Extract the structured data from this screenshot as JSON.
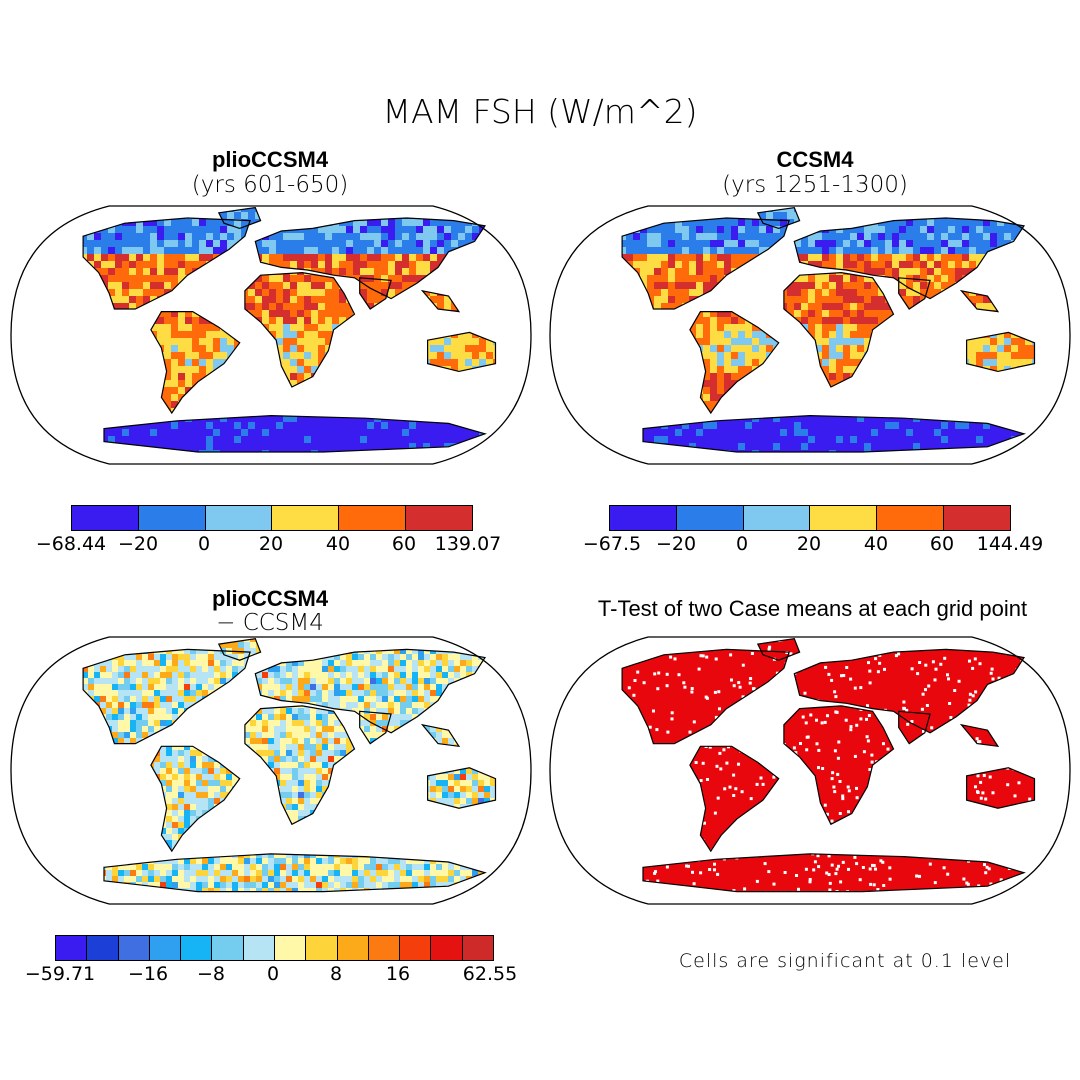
{
  "figure": {
    "title": "MAM FSH (W/m^2)"
  },
  "panels": [
    {
      "title": "plioCCSM4",
      "subtitle": "(yrs 601-650)",
      "colorbar": {
        "colors": [
          "#3b1cf0",
          "#2b7de9",
          "#7fc8f0",
          "#fddc44",
          "#ff6a0a",
          "#d42e2e"
        ],
        "labels": [
          "−68.44",
          "−20",
          "0",
          "20",
          "40",
          "60",
          "139.07"
        ]
      }
    },
    {
      "title": "CCSM4",
      "subtitle": "(yrs 1251-1300)",
      "colorbar": {
        "colors": [
          "#3b1cf0",
          "#2b7de9",
          "#7fc8f0",
          "#fddc44",
          "#ff6a0a",
          "#d42e2e"
        ],
        "labels": [
          "−67.5",
          "−20",
          "0",
          "20",
          "40",
          "60",
          "144.49"
        ]
      }
    },
    {
      "title": "plioCCSM4",
      "subtitle": "− CCSM4",
      "colorbar": {
        "colors": [
          "#3b1cf0",
          "#1c3fd8",
          "#3f6fe0",
          "#2ea0ef",
          "#17b4f5",
          "#74cdef",
          "#b7e4f4",
          "#fff8a8",
          "#fdd43a",
          "#fcaa1a",
          "#fc7a12",
          "#f43f0c",
          "#e41210",
          "#cf2a2a"
        ],
        "labels": [
          "−59.71",
          "−16",
          "−8",
          "0",
          "8",
          "16",
          "62.55"
        ]
      }
    },
    {
      "title": "T-Test of two Case means at each grid point",
      "note": "Cells are significant at 0.1 level",
      "significance_color": "#e8070c"
    }
  ]
}
